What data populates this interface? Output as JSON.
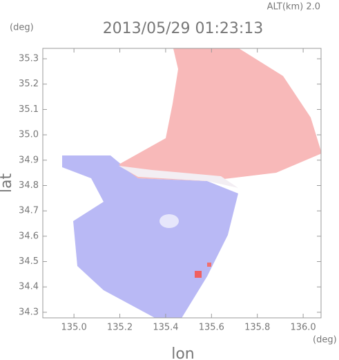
{
  "chart_data": {
    "type": "image",
    "title": "2013/05/29 01:23:13",
    "annotation": "ALT(km) 2.0",
    "x_label": "lon",
    "y_label": "lat",
    "x_unit": "(deg)",
    "y_unit": "(deg)",
    "xlim": [
      134.864,
      136.078
    ],
    "ylim": [
      34.278,
      35.341
    ],
    "xticks": [
      {
        "value": 135.0,
        "label": "135.0"
      },
      135.2,
      135.4,
      135.6,
      135.8,
      {
        "value": 136.0,
        "label": "136.0"
      }
    ],
    "yticks": [
      34.3,
      34.4,
      34.5,
      34.6,
      34.7,
      34.8,
      34.9,
      {
        "value": 35.0,
        "label": "35.0"
      },
      35.1,
      35.2,
      35.3
    ]
  }
}
